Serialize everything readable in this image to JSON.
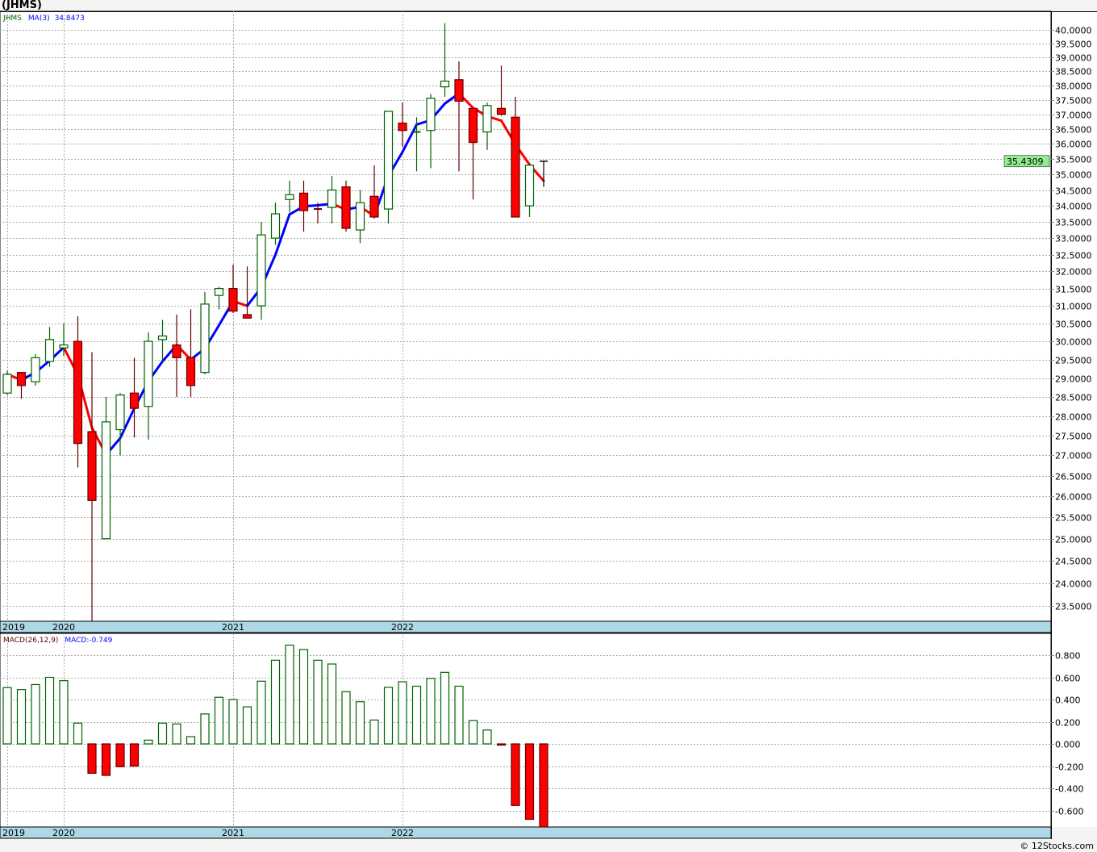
{
  "title": "(JHMS)",
  "footer": "© 12Stocks.com",
  "colors": {
    "up": "#006400",
    "down": "#ff0000",
    "down_border": "#600000",
    "ma_up": "#0000ff",
    "ma_down": "#ff0000",
    "date_band": "#add8e6",
    "price_tag": "#90ee90"
  },
  "chart_data": [
    {
      "type": "candlestick",
      "title": "(JHMS)",
      "legend": {
        "symbol": "JHMS",
        "ma_label": "MA(3)",
        "ma_value": "34.8473"
      },
      "scale": "log",
      "ylim": [
        23.2,
        40.5
      ],
      "y_ticks": [
        "23.5000",
        "24.0000",
        "24.5000",
        "25.0000",
        "25.5000",
        "26.0000",
        "26.5000",
        "27.0000",
        "27.5000",
        "28.0000",
        "28.5000",
        "29.0000",
        "29.5000",
        "30.0000",
        "30.5000",
        "31.0000",
        "31.5000",
        "32.0000",
        "32.5000",
        "33.0000",
        "33.5000",
        "34.0000",
        "34.5000",
        "35.0000",
        "35.5000",
        "36.0000",
        "36.5000",
        "37.0000",
        "37.5000",
        "38.0000",
        "38.5000",
        "39.0000",
        "39.5000",
        "40.0000"
      ],
      "last_price": "35.4309",
      "x_ticks": [
        {
          "label": "2019",
          "index": 0
        },
        {
          "label": "2020",
          "index": 4
        },
        {
          "label": "2021",
          "index": 16
        },
        {
          "label": "2022",
          "index": 28
        }
      ],
      "candles": [
        [
          28.6,
          29.2,
          28.55,
          29.1
        ],
        [
          29.15,
          29.15,
          28.45,
          28.8
        ],
        [
          28.9,
          29.65,
          28.8,
          29.55
        ],
        [
          29.45,
          30.4,
          29.3,
          30.05
        ],
        [
          29.82,
          30.5,
          29.6,
          29.9
        ],
        [
          30.0,
          30.7,
          26.7,
          27.3
        ],
        [
          27.6,
          29.7,
          23.1,
          25.9
        ],
        [
          25.0,
          28.5,
          25.0,
          27.85
        ],
        [
          27.65,
          28.6,
          27.0,
          28.55
        ],
        [
          28.6,
          29.55,
          27.45,
          28.2
        ],
        [
          28.25,
          30.25,
          27.4,
          30.0
        ],
        [
          30.05,
          30.6,
          29.4,
          30.15
        ],
        [
          29.9,
          30.75,
          28.5,
          29.55
        ],
        [
          29.55,
          30.9,
          28.5,
          28.8
        ],
        [
          29.15,
          31.4,
          29.1,
          31.05
        ],
        [
          31.3,
          31.55,
          30.9,
          31.5
        ],
        [
          31.5,
          32.2,
          30.8,
          30.85
        ],
        [
          30.75,
          32.15,
          30.65,
          30.65
        ],
        [
          31.0,
          33.5,
          30.6,
          33.1
        ],
        [
          33.0,
          34.1,
          32.8,
          33.75
        ],
        [
          34.2,
          34.8,
          33.8,
          34.35
        ],
        [
          34.4,
          34.8,
          33.2,
          33.85
        ],
        [
          33.9,
          34.1,
          33.45,
          33.85
        ],
        [
          33.95,
          34.95,
          33.45,
          34.5
        ],
        [
          34.6,
          34.8,
          33.2,
          33.3
        ],
        [
          33.25,
          34.5,
          32.85,
          34.1
        ],
        [
          34.3,
          35.3,
          33.6,
          33.65
        ],
        [
          33.9,
          37.1,
          33.45,
          37.1
        ],
        [
          36.7,
          37.4,
          35.9,
          36.45
        ],
        [
          36.35,
          36.9,
          35.1,
          36.4
        ],
        [
          36.45,
          37.7,
          35.2,
          37.55
        ],
        [
          37.95,
          40.25,
          37.6,
          38.15
        ],
        [
          38.2,
          38.85,
          35.1,
          37.45
        ],
        [
          37.2,
          37.2,
          34.2,
          36.05
        ],
        [
          36.4,
          37.4,
          35.8,
          37.3
        ],
        [
          37.2,
          38.7,
          36.95,
          37.0
        ],
        [
          36.9,
          37.6,
          33.65,
          33.65
        ],
        [
          34.0,
          35.35,
          33.65,
          35.3
        ],
        [
          35.43,
          35.43,
          34.6,
          35.43
        ]
      ],
      "candle_format": [
        "open",
        "high",
        "low",
        "close"
      ]
    },
    {
      "type": "bar",
      "title": "MACD(26,12,9)",
      "legend": {
        "label": "MACD(26,12,9)",
        "value_label": "MACD:-0.749"
      },
      "ylim": [
        -0.75,
        1.0
      ],
      "y_ticks": [
        "0.800",
        "0.600",
        "0.400",
        "0.200",
        "0.000",
        "-0.200",
        "-0.400",
        "-0.600"
      ],
      "x_ticks": [
        {
          "label": "2019",
          "index": 0
        },
        {
          "label": "2020",
          "index": 4
        },
        {
          "label": "2021",
          "index": 16
        },
        {
          "label": "2022",
          "index": 28
        }
      ],
      "values": [
        0.507,
        0.49,
        0.535,
        0.6,
        0.57,
        0.187,
        -0.265,
        -0.284,
        -0.206,
        -0.2,
        0.034,
        0.187,
        0.18,
        0.065,
        0.27,
        0.42,
        0.4,
        0.334,
        0.565,
        0.754,
        0.89,
        0.85,
        0.754,
        0.72,
        0.47,
        0.38,
        0.215,
        0.51,
        0.56,
        0.52,
        0.59,
        0.645,
        0.52,
        0.21,
        0.125,
        -0.01,
        -0.555,
        -0.68,
        -0.749
      ]
    }
  ]
}
